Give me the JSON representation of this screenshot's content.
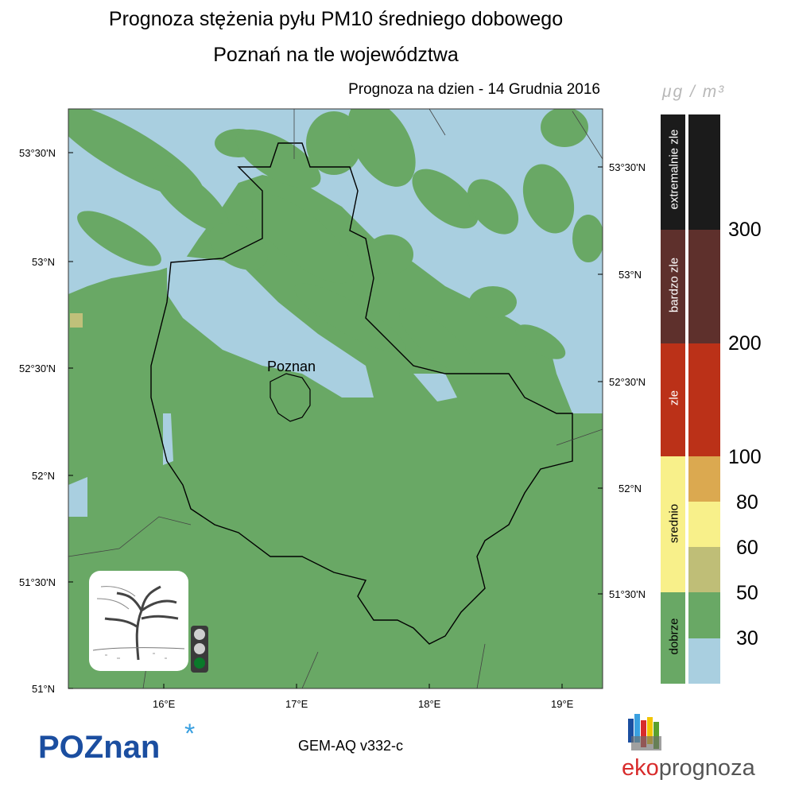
{
  "title": {
    "line1": "Prognoza stężenia pyłu PM10 średniego dobowego",
    "line2": "Poznań na tle województwa"
  },
  "forecast_label": "Prognoza na dzien -  14 Grudnia 2016",
  "map": {
    "city_label": "Poznan",
    "lat_labels_left": [
      "53°30'N",
      "53°N",
      "52°30'N",
      "52°N",
      "51°30'N",
      "51°N"
    ],
    "lat_labels_right": [
      "53°30'N",
      "53°N",
      "52°30'N",
      "52°N",
      "51°30'N"
    ],
    "lon_labels": [
      "16°E",
      "17°E",
      "18°E",
      "19°E"
    ],
    "colors": {
      "land_good": "#69a865",
      "very_good": "#a9cfe0",
      "moderate_low": "#c0c07a",
      "border": "#000000"
    },
    "traffic_light_active": "green"
  },
  "legend": {
    "unit": "μg / m³",
    "categories": [
      {
        "label": "extremalnie zle",
        "color": "#1b1b1b"
      },
      {
        "label": "bardzo zle",
        "color": "#5e302c"
      },
      {
        "label": "zle",
        "color": "#bb3118"
      },
      {
        "label": "srednio",
        "color": "#f8f08a"
      },
      {
        "label": "dobrze",
        "color": "#69a865"
      }
    ],
    "scale_colors": [
      "#1b1b1b",
      "#5e302c",
      "#bb3118",
      "#dba950",
      "#f8f08a",
      "#bfbe77",
      "#69a865",
      "#a9cfe0"
    ],
    "thresholds": [
      "300",
      "200",
      "100",
      "80",
      "60",
      "50",
      "30"
    ]
  },
  "footer": {
    "logo_left": "POZnan",
    "model": "GEM-AQ v332-c",
    "logo_right": "ekoprognoza"
  }
}
